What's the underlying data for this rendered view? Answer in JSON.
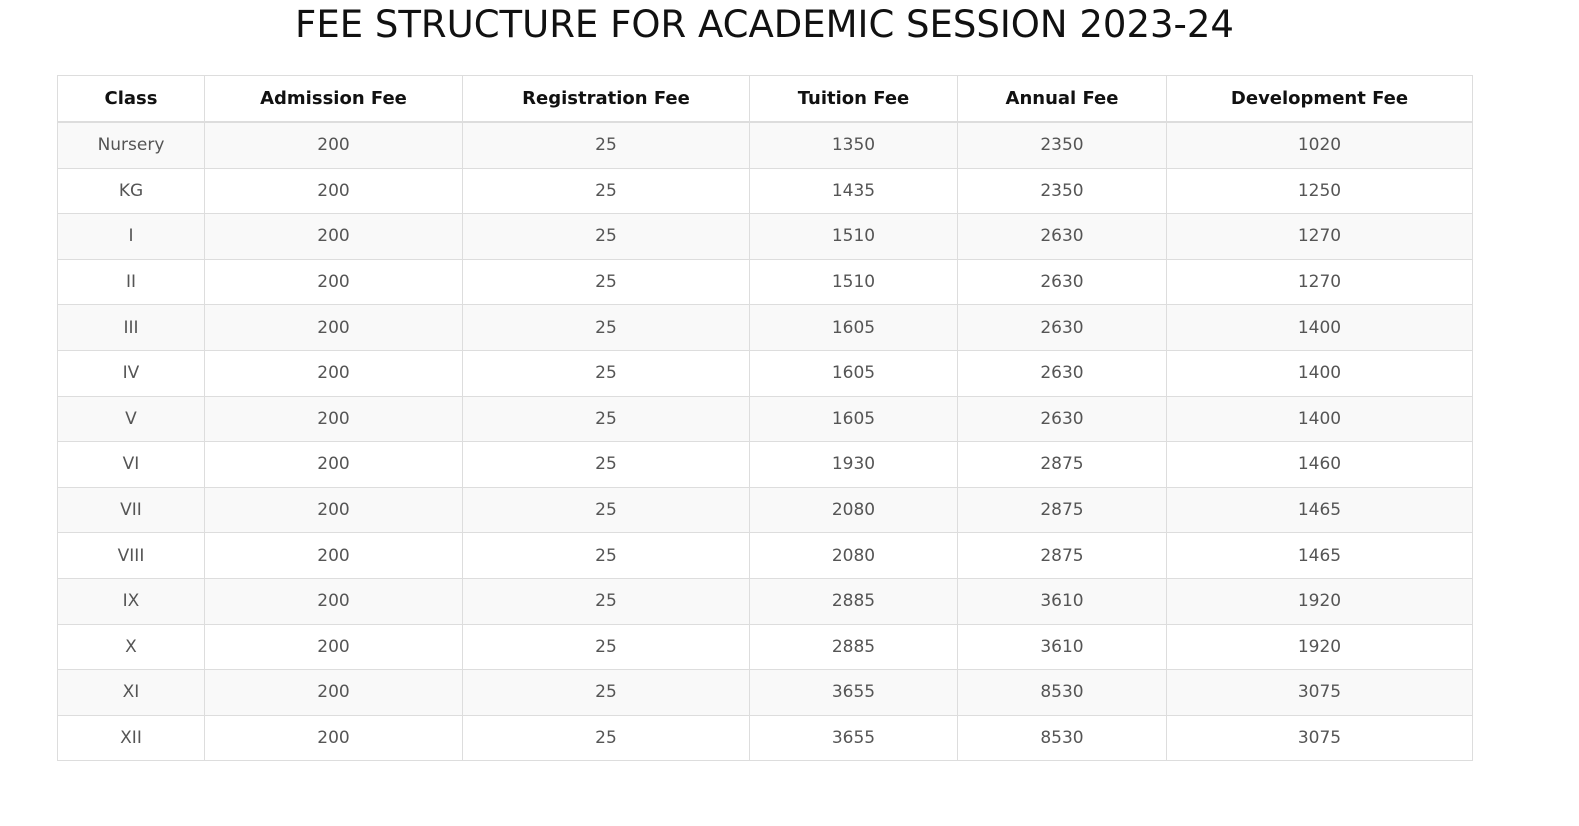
{
  "page": {
    "title": "FEE STRUCTURE FOR ACADEMIC SESSION 2023-24"
  },
  "table": {
    "headers": [
      "Class",
      "Admission Fee",
      "Registration Fee",
      "Tuition Fee",
      "Annual Fee",
      "Development Fee"
    ],
    "rows": [
      [
        "Nursery",
        "200",
        "25",
        "1350",
        "2350",
        "1020"
      ],
      [
        "KG",
        "200",
        "25",
        "1435",
        "2350",
        "1250"
      ],
      [
        "I",
        "200",
        "25",
        "1510",
        "2630",
        "1270"
      ],
      [
        "II",
        "200",
        "25",
        "1510",
        "2630",
        "1270"
      ],
      [
        "III",
        "200",
        "25",
        "1605",
        "2630",
        "1400"
      ],
      [
        "IV",
        "200",
        "25",
        "1605",
        "2630",
        "1400"
      ],
      [
        "V",
        "200",
        "25",
        "1605",
        "2630",
        "1400"
      ],
      [
        "VI",
        "200",
        "25",
        "1930",
        "2875",
        "1460"
      ],
      [
        "VII",
        "200",
        "25",
        "2080",
        "2875",
        "1465"
      ],
      [
        "VIII",
        "200",
        "25",
        "2080",
        "2875",
        "1465"
      ],
      [
        "IX",
        "200",
        "25",
        "2885",
        "3610",
        "1920"
      ],
      [
        "X",
        "200",
        "25",
        "2885",
        "3610",
        "1920"
      ],
      [
        "XI",
        "200",
        "25",
        "3655",
        "8530",
        "3075"
      ],
      [
        "XII",
        "200",
        "25",
        "3655",
        "8530",
        "3075"
      ]
    ]
  },
  "colors": {
    "border": "#dddddd",
    "stripe": "#f9f9f9",
    "text": "#555555",
    "heading": "#111111"
  }
}
